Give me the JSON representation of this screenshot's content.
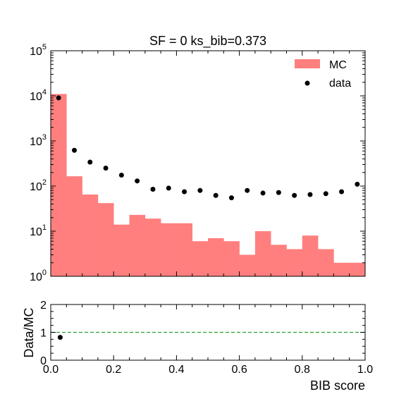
{
  "chart_data": [
    {
      "type": "bar",
      "subtype": "histogram-with-points",
      "title": "SF = 0 ks_bib=0.373",
      "xlabel": "",
      "ylabel": "",
      "yscale": "log",
      "xlim": [
        0,
        1
      ],
      "ylim": [
        1,
        100000
      ],
      "y_ticks": [
        {
          "base": "10",
          "exp": "0"
        },
        {
          "base": "10",
          "exp": "1"
        },
        {
          "base": "10",
          "exp": "2"
        },
        {
          "base": "10",
          "exp": "3"
        },
        {
          "base": "10",
          "exp": "4"
        },
        {
          "base": "10",
          "exp": "5"
        }
      ],
      "legend": {
        "position": "top-right",
        "entries": [
          "MC",
          "data"
        ]
      },
      "colors": {
        "mc": "#ff7f7f",
        "data": "#000000"
      },
      "bin_edges": [
        0,
        0.05,
        0.1,
        0.15,
        0.2,
        0.25,
        0.3,
        0.35,
        0.4,
        0.45,
        0.5,
        0.55,
        0.6,
        0.65,
        0.7,
        0.75,
        0.8,
        0.85,
        0.9,
        0.95,
        1.0
      ],
      "series": [
        {
          "name": "MC",
          "kind": "histogram",
          "values": [
            11000,
            165,
            65,
            42,
            14,
            23,
            19,
            15,
            15,
            6,
            7,
            6,
            3,
            10,
            5,
            4,
            8,
            4,
            2,
            2
          ]
        },
        {
          "name": "data",
          "kind": "points",
          "x": [
            0.025,
            0.075,
            0.125,
            0.175,
            0.225,
            0.275,
            0.325,
            0.375,
            0.425,
            0.475,
            0.525,
            0.575,
            0.625,
            0.675,
            0.725,
            0.775,
            0.825,
            0.875,
            0.925,
            0.975
          ],
          "values": [
            9000,
            620,
            340,
            250,
            175,
            130,
            85,
            90,
            75,
            80,
            62,
            55,
            80,
            70,
            72,
            62,
            65,
            68,
            75,
            110
          ]
        }
      ]
    },
    {
      "type": "scatter",
      "subtype": "ratio",
      "xlabel": "BIB score",
      "ylabel": "Data/MC",
      "xlim": [
        0,
        1
      ],
      "ylim": [
        0,
        2
      ],
      "x_ticks": [
        "0.0",
        "0.2",
        "0.4",
        "0.6",
        "0.8",
        "1.0"
      ],
      "y_ticks": [
        "0",
        "1",
        "2"
      ],
      "reference_line": {
        "y": 1,
        "color": "#2ca02c",
        "style": "dashed"
      },
      "series": [
        {
          "name": "",
          "x": [
            0.03
          ],
          "values": [
            0.82
          ]
        }
      ]
    }
  ]
}
